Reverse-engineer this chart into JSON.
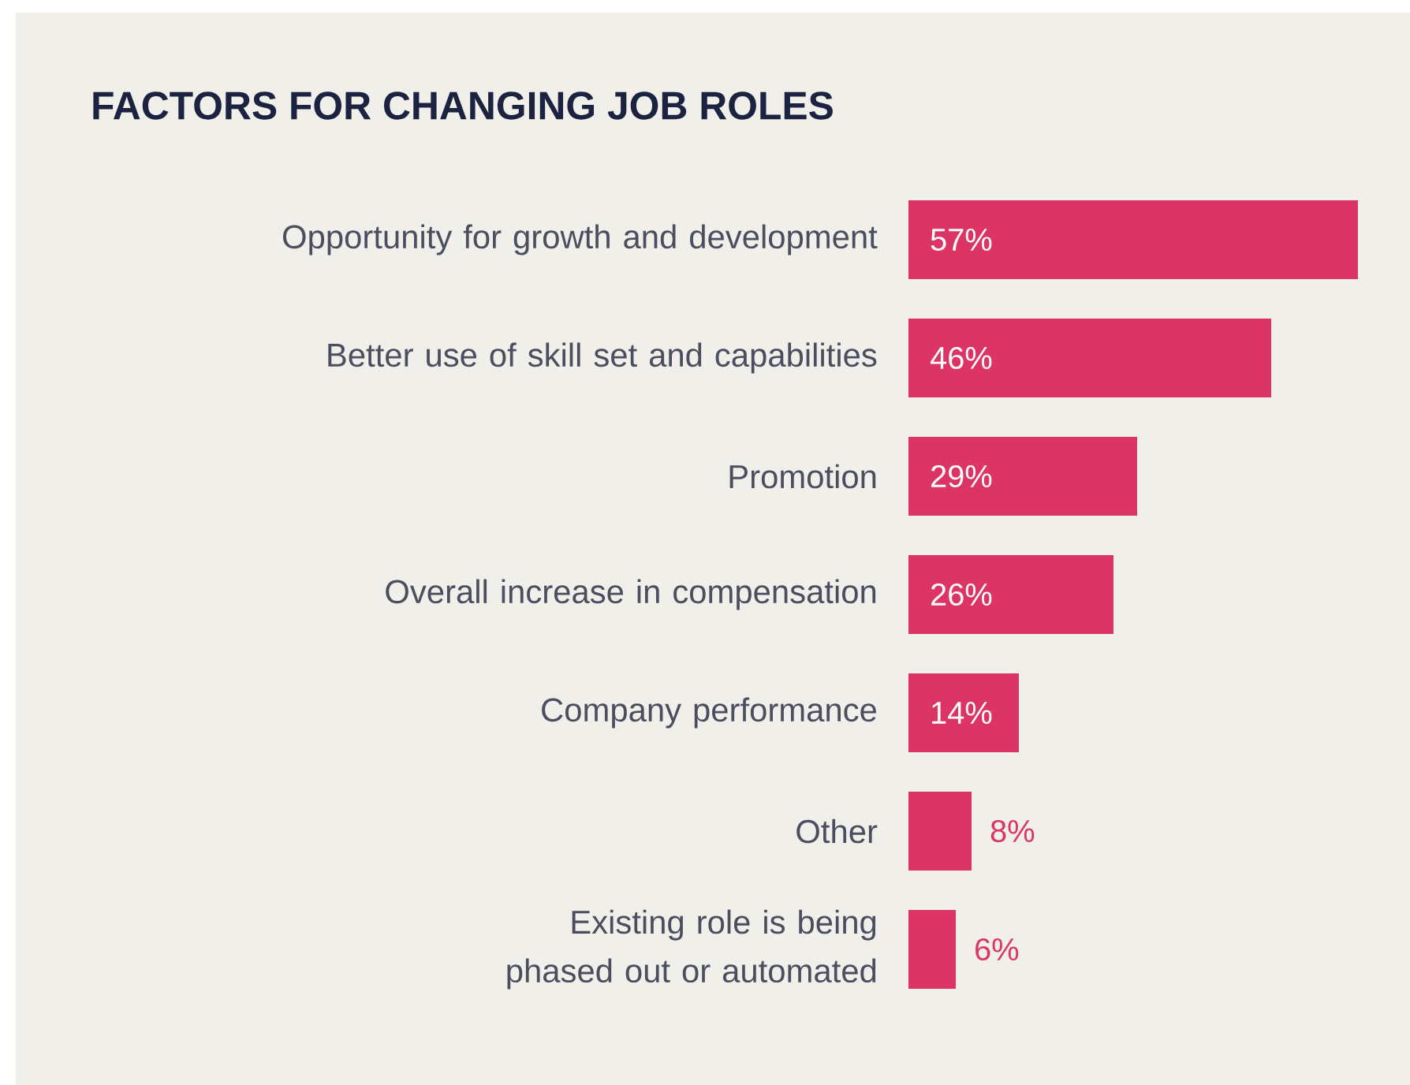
{
  "chart_data": {
    "type": "bar",
    "orientation": "horizontal",
    "title": "FACTORS FOR CHANGING JOB ROLES",
    "categories": [
      "Opportunity for growth and development",
      "Better use of skill set and capabilities",
      "Promotion",
      "Overall increase in compensation",
      "Company performance",
      "Other",
      "Existing role is being phased out or automated"
    ],
    "values": [
      57,
      46,
      29,
      26,
      14,
      8,
      6
    ],
    "value_labels": [
      "57%",
      "46%",
      "29%",
      "26%",
      "14%",
      "8%",
      "6%"
    ],
    "color": "#dc3565"
  }
}
